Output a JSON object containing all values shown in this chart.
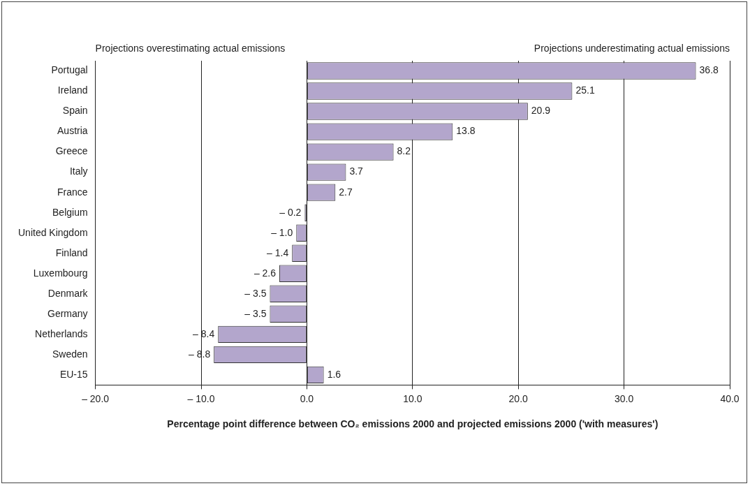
{
  "chart_data": {
    "type": "bar",
    "orientation": "horizontal",
    "xlabel": "Percentage point difference between CO₂ emissions 2000 and projected emissions 2000 ('with measures')",
    "annotations": [
      "Projections overestimating actual emissions",
      "Projections underestimating actual emissions"
    ],
    "categories": [
      "Portugal",
      "Ireland",
      "Spain",
      "Austria",
      "Greece",
      "Italy",
      "France",
      "Belgium",
      "United Kingdom",
      "Finland",
      "Luxembourg",
      "Denmark",
      "Germany",
      "Netherlands",
      "Sweden",
      "EU-15"
    ],
    "values": [
      36.8,
      25.1,
      20.9,
      13.8,
      8.2,
      3.7,
      2.7,
      -0.2,
      -1.0,
      -1.4,
      -2.6,
      -3.5,
      -3.5,
      -8.4,
      -8.8,
      1.6
    ],
    "value_labels": [
      "36.8",
      "25.1",
      "20.9",
      "13.8",
      "8.2",
      "3.7",
      "2.7",
      "– 0.2",
      "– 1.0",
      "– 1.4",
      "– 2.6",
      "– 3.5",
      "– 3.5",
      "– 8.4",
      "– 8.8",
      "1.6"
    ],
    "color": "#b3a6cc",
    "xlim": [
      -20,
      40
    ],
    "xticks": [
      {
        "value": -20,
        "label": "– 20.0"
      },
      {
        "value": -10,
        "label": "– 10.0"
      },
      {
        "value": 0,
        "label": "0.0"
      },
      {
        "value": 10,
        "label": "10.0"
      },
      {
        "value": 20,
        "label": "20.0"
      },
      {
        "value": 30,
        "label": "30.0"
      },
      {
        "value": 40,
        "label": "40.0"
      }
    ],
    "grid": "x",
    "legend": false
  }
}
